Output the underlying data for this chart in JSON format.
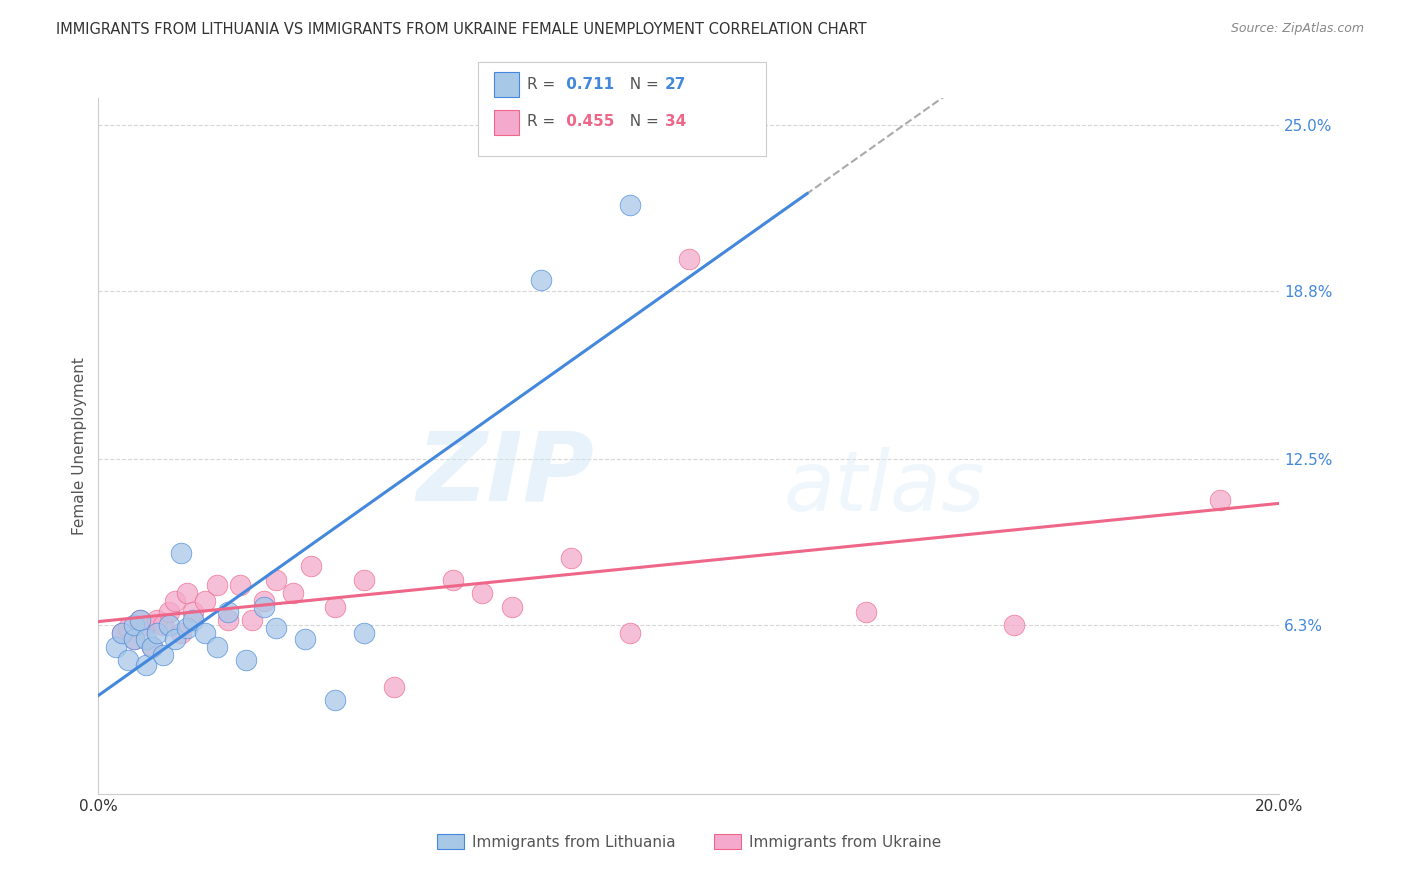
{
  "title": "IMMIGRANTS FROM LITHUANIA VS IMMIGRANTS FROM UKRAINE FEMALE UNEMPLOYMENT CORRELATION CHART",
  "source": "Source: ZipAtlas.com",
  "ylabel": "Female Unemployment",
  "xlim": [
    0.0,
    0.2
  ],
  "ylim": [
    0.0,
    0.26
  ],
  "ytick_values": [
    0.0,
    0.063,
    0.125,
    0.188,
    0.25
  ],
  "xtick_values": [
    0.0,
    0.04,
    0.08,
    0.12,
    0.16,
    0.2
  ],
  "lithuania_color": "#a8c8e8",
  "ukraine_color": "#f4aacc",
  "lithuania_line_color": "#4488dd",
  "ukraine_line_color": "#ee6688",
  "R_lithuania": 0.711,
  "N_lithuania": 27,
  "R_ukraine": 0.455,
  "N_ukraine": 34,
  "background_color": "#ffffff",
  "grid_color": "#cccccc",
  "lithuania_x": [
    0.003,
    0.004,
    0.005,
    0.006,
    0.006,
    0.007,
    0.008,
    0.008,
    0.009,
    0.01,
    0.011,
    0.012,
    0.013,
    0.014,
    0.015,
    0.016,
    0.018,
    0.02,
    0.022,
    0.025,
    0.028,
    0.03,
    0.035,
    0.04,
    0.045,
    0.075,
    0.09
  ],
  "lithuania_y": [
    0.055,
    0.06,
    0.05,
    0.058,
    0.063,
    0.065,
    0.058,
    0.048,
    0.055,
    0.06,
    0.052,
    0.063,
    0.058,
    0.09,
    0.062,
    0.065,
    0.06,
    0.055,
    0.068,
    0.05,
    0.07,
    0.062,
    0.058,
    0.035,
    0.06,
    0.192,
    0.22
  ],
  "ukraine_x": [
    0.004,
    0.005,
    0.006,
    0.007,
    0.008,
    0.009,
    0.01,
    0.011,
    0.012,
    0.013,
    0.014,
    0.015,
    0.016,
    0.018,
    0.02,
    0.022,
    0.024,
    0.026,
    0.028,
    0.03,
    0.033,
    0.036,
    0.04,
    0.045,
    0.05,
    0.06,
    0.065,
    0.07,
    0.08,
    0.09,
    0.1,
    0.13,
    0.155,
    0.19
  ],
  "ukraine_y": [
    0.06,
    0.062,
    0.058,
    0.065,
    0.063,
    0.055,
    0.065,
    0.063,
    0.068,
    0.072,
    0.06,
    0.075,
    0.068,
    0.072,
    0.078,
    0.065,
    0.078,
    0.065,
    0.072,
    0.08,
    0.075,
    0.085,
    0.07,
    0.08,
    0.04,
    0.08,
    0.075,
    0.07,
    0.088,
    0.06,
    0.2,
    0.068,
    0.063,
    0.11
  ]
}
